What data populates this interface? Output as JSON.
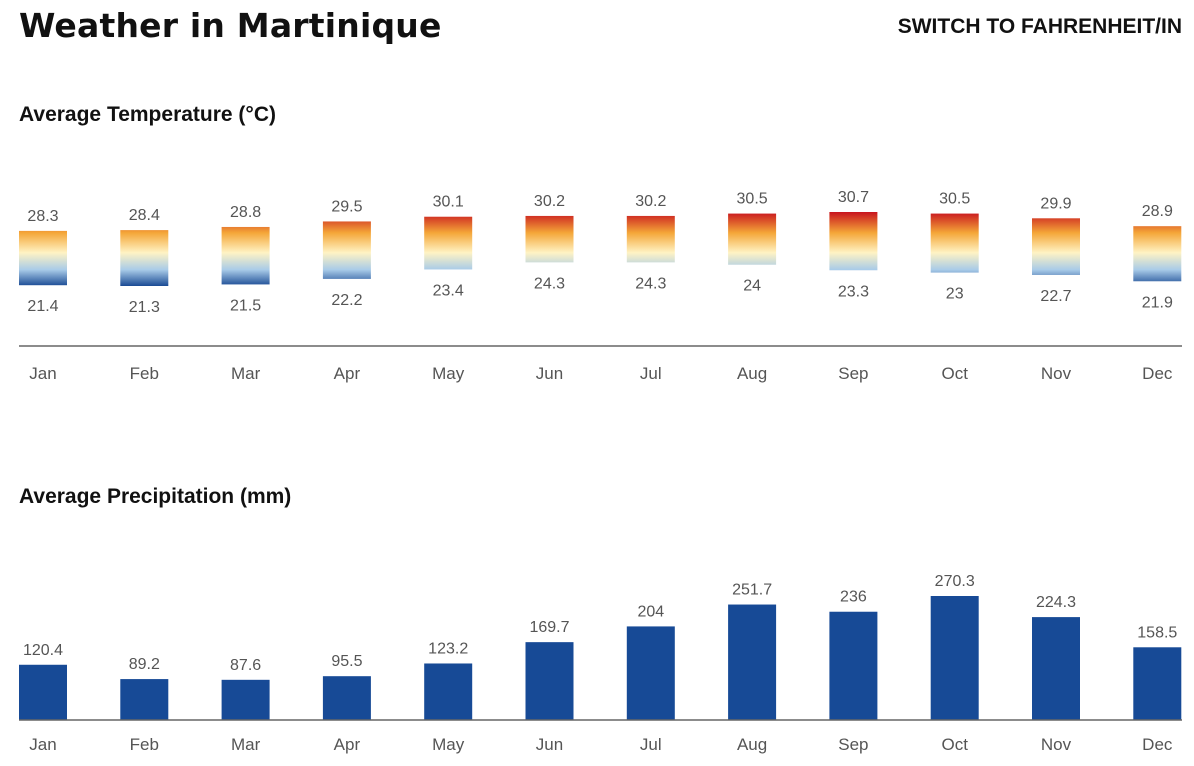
{
  "header": {
    "title": "Weather in Martinique",
    "switch_label": "SWITCH TO FAHRENHEIT/IN"
  },
  "colors": {
    "hot": "#c8141e",
    "warm": "#f4a638",
    "mild": "#fff3c4",
    "cool": "#a9cbe8",
    "cold": "#1a4a94",
    "precip_bar": "#174a96",
    "axis": "#666666",
    "label": "#555555"
  },
  "chart_data": [
    {
      "type": "bar",
      "title": "Average Temperature (°C)",
      "categories": [
        "Jan",
        "Feb",
        "Mar",
        "Apr",
        "May",
        "Jun",
        "Jul",
        "Aug",
        "Sep",
        "Oct",
        "Nov",
        "Dec"
      ],
      "series": [
        {
          "name": "",
          "values": [
            28.3,
            28.4,
            28.8,
            29.5,
            30.1,
            30.2,
            30.2,
            30.5,
            30.7,
            30.5,
            29.9,
            28.9
          ]
        },
        {
          "name": "",
          "values": [
            21.4,
            21.3,
            21.5,
            22.2,
            23.4,
            24.3,
            24.3,
            24,
            23.3,
            23,
            22.7,
            21.9
          ]
        }
      ],
      "xlabel": "",
      "ylabel": "",
      "grid": false
    },
    {
      "type": "bar",
      "title": "Average Precipitation (mm)",
      "categories": [
        "Jan",
        "Feb",
        "Mar",
        "Apr",
        "May",
        "Jun",
        "Jul",
        "Aug",
        "Sep",
        "Oct",
        "Nov",
        "Dec"
      ],
      "values": [
        120.4,
        89.2,
        87.6,
        95.5,
        123.2,
        169.7,
        204,
        251.7,
        236,
        270.3,
        224.3,
        158.5
      ],
      "xlabel": "",
      "ylabel": "",
      "ylim": [
        0,
        270.3
      ],
      "grid": false
    }
  ]
}
